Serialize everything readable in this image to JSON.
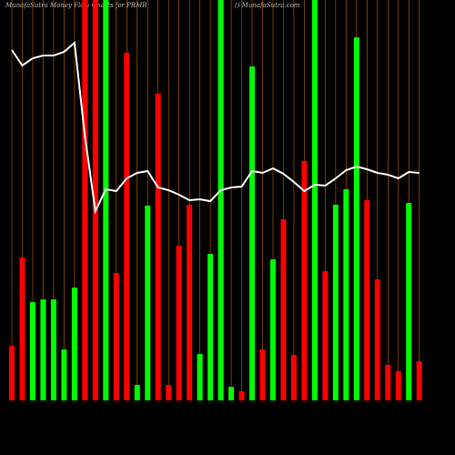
{
  "chart_data": {
    "type": "bar",
    "title": "MunafaSutra  Money Flow Charts for PRMB",
    "subtitle": "() MunafaSutra.com",
    "categories": [
      null,
      null,
      null,
      null,
      null,
      null,
      null,
      null,
      null,
      null,
      null,
      null,
      null,
      null,
      null,
      null,
      null,
      null,
      null,
      null,
      null,
      null,
      null,
      null,
      null,
      null,
      null,
      null,
      null,
      null,
      null,
      null,
      null,
      null,
      null,
      null,
      null,
      null,
      null,
      null
    ],
    "values": [
      60,
      157,
      108,
      111,
      111,
      56,
      124,
      440,
      440,
      440,
      140,
      382,
      17,
      214,
      337,
      17,
      170,
      215,
      51,
      161,
      440,
      15,
      10,
      367,
      56,
      155,
      199,
      50,
      263,
      440,
      142,
      215,
      232,
      399,
      220,
      133,
      39,
      32,
      217,
      43
    ],
    "bar_colors": [
      "red",
      "red",
      "lime",
      "lime",
      "lime",
      "lime",
      "lime",
      "red",
      "red",
      "lime",
      "red",
      "red",
      "lime",
      "lime",
      "red",
      "red",
      "red",
      "red",
      "lime",
      "lime",
      "lime",
      "lime",
      "red",
      "lime",
      "red",
      "lime",
      "red",
      "red",
      "red",
      "lime",
      "red",
      "lime",
      "lime",
      "lime",
      "red",
      "red",
      "red",
      "red",
      "lime",
      "red"
    ],
    "line": {
      "color": "white",
      "values": [
        385,
        368,
        376,
        379,
        379,
        383,
        393,
        290,
        208,
        232,
        230,
        244,
        250,
        252,
        234,
        231,
        226,
        220,
        221,
        219,
        231,
        234,
        235,
        252,
        250,
        255,
        249,
        240,
        230,
        237,
        236,
        244,
        253,
        257,
        254,
        250,
        248,
        244,
        251,
        250
      ]
    },
    "ylim": [
      0,
      440
    ],
    "grid_color": "#c06000"
  }
}
